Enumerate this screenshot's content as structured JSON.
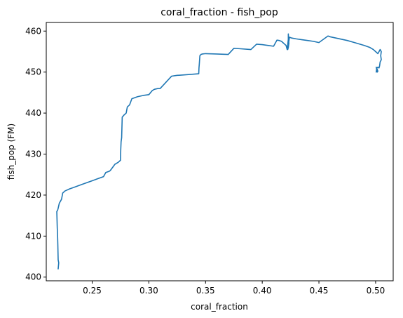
{
  "chart_data": {
    "type": "line",
    "title": "coral_fraction - fish_pop",
    "xlabel": "coral_fraction",
    "ylabel": "fish_pop (FM)",
    "xlim": [
      0.2095,
      0.5155
    ],
    "ylim": [
      399.1,
      462.1
    ],
    "xticks": [
      {
        "value": 0.25,
        "label": "0.25"
      },
      {
        "value": 0.3,
        "label": "0.30"
      },
      {
        "value": 0.35,
        "label": "0.35"
      },
      {
        "value": 0.4,
        "label": "0.40"
      },
      {
        "value": 0.45,
        "label": "0.45"
      },
      {
        "value": 0.5,
        "label": "0.50"
      }
    ],
    "yticks": [
      {
        "value": 400,
        "label": "400"
      },
      {
        "value": 410,
        "label": "410"
      },
      {
        "value": 420,
        "label": "420"
      },
      {
        "value": 430,
        "label": "430"
      },
      {
        "value": 440,
        "label": "440"
      },
      {
        "value": 450,
        "label": "450"
      },
      {
        "value": 460,
        "label": "460"
      }
    ],
    "grid": false,
    "series": [
      {
        "name": "fish_pop",
        "color": "#1f77b4",
        "x": [
          0.22,
          0.2205,
          0.22,
          0.2197,
          0.2195,
          0.2192,
          0.219,
          0.2188,
          0.2195,
          0.22,
          0.221,
          0.222,
          0.223,
          0.224,
          0.226,
          0.23,
          0.235,
          0.24,
          0.245,
          0.25,
          0.255,
          0.26,
          0.262,
          0.265,
          0.266,
          0.27,
          0.273,
          0.275,
          0.2752,
          0.2755,
          0.276,
          0.2765,
          0.278,
          0.28,
          0.281,
          0.283,
          0.285,
          0.29,
          0.295,
          0.3,
          0.303,
          0.305,
          0.308,
          0.31,
          0.315,
          0.32,
          0.325,
          0.33,
          0.335,
          0.34,
          0.344,
          0.3442,
          0.3445,
          0.345,
          0.346,
          0.347,
          0.35,
          0.36,
          0.37,
          0.375,
          0.38,
          0.39,
          0.395,
          0.4,
          0.405,
          0.41,
          0.413,
          0.415,
          0.417,
          0.419,
          0.421,
          0.422,
          0.423,
          0.423,
          0.4235,
          0.423,
          0.4225,
          0.424,
          0.426,
          0.43,
          0.435,
          0.44,
          0.445,
          0.45,
          0.455,
          0.458,
          0.46,
          0.465,
          0.47,
          0.475,
          0.48,
          0.485,
          0.49,
          0.495,
          0.498,
          0.5,
          0.502,
          0.504,
          0.505,
          0.5045,
          0.505,
          0.504,
          0.5035,
          0.503,
          0.502,
          0.501,
          0.5005,
          0.501,
          0.502,
          0.501,
          0.5015,
          0.5005
        ],
        "y": [
          402.0,
          403.5,
          404.2,
          408.0,
          410.0,
          412.0,
          414.0,
          416.0,
          416.3,
          416.8,
          418.0,
          418.5,
          419.0,
          420.5,
          421.0,
          421.5,
          422.0,
          422.5,
          423.0,
          423.5,
          424.0,
          424.5,
          425.5,
          425.8,
          426.0,
          427.5,
          428.0,
          428.5,
          431.0,
          433.0,
          434.0,
          439.0,
          439.5,
          440.0,
          441.5,
          442.0,
          443.5,
          444.0,
          444.3,
          444.5,
          445.5,
          445.8,
          446.0,
          446.0,
          447.5,
          449.0,
          449.2,
          449.3,
          449.4,
          449.5,
          449.6,
          451.0,
          452.0,
          454.0,
          454.3,
          454.4,
          454.5,
          454.4,
          454.3,
          455.8,
          455.7,
          455.5,
          456.8,
          456.7,
          456.5,
          456.3,
          457.8,
          457.7,
          457.5,
          457.0,
          456.5,
          455.5,
          458.0,
          459.3,
          457.0,
          456.0,
          455.5,
          458.5,
          458.3,
          458.1,
          457.9,
          457.7,
          457.5,
          457.2,
          458.2,
          458.8,
          458.6,
          458.3,
          458.0,
          457.7,
          457.3,
          456.9,
          456.5,
          456.0,
          455.5,
          455.0,
          454.5,
          455.5,
          455.0,
          454.0,
          453.0,
          452.5,
          451.5,
          451.0,
          451.2,
          451.0,
          450.0,
          450.5,
          450.2,
          451.0,
          450.0,
          451.2
        ]
      }
    ]
  }
}
